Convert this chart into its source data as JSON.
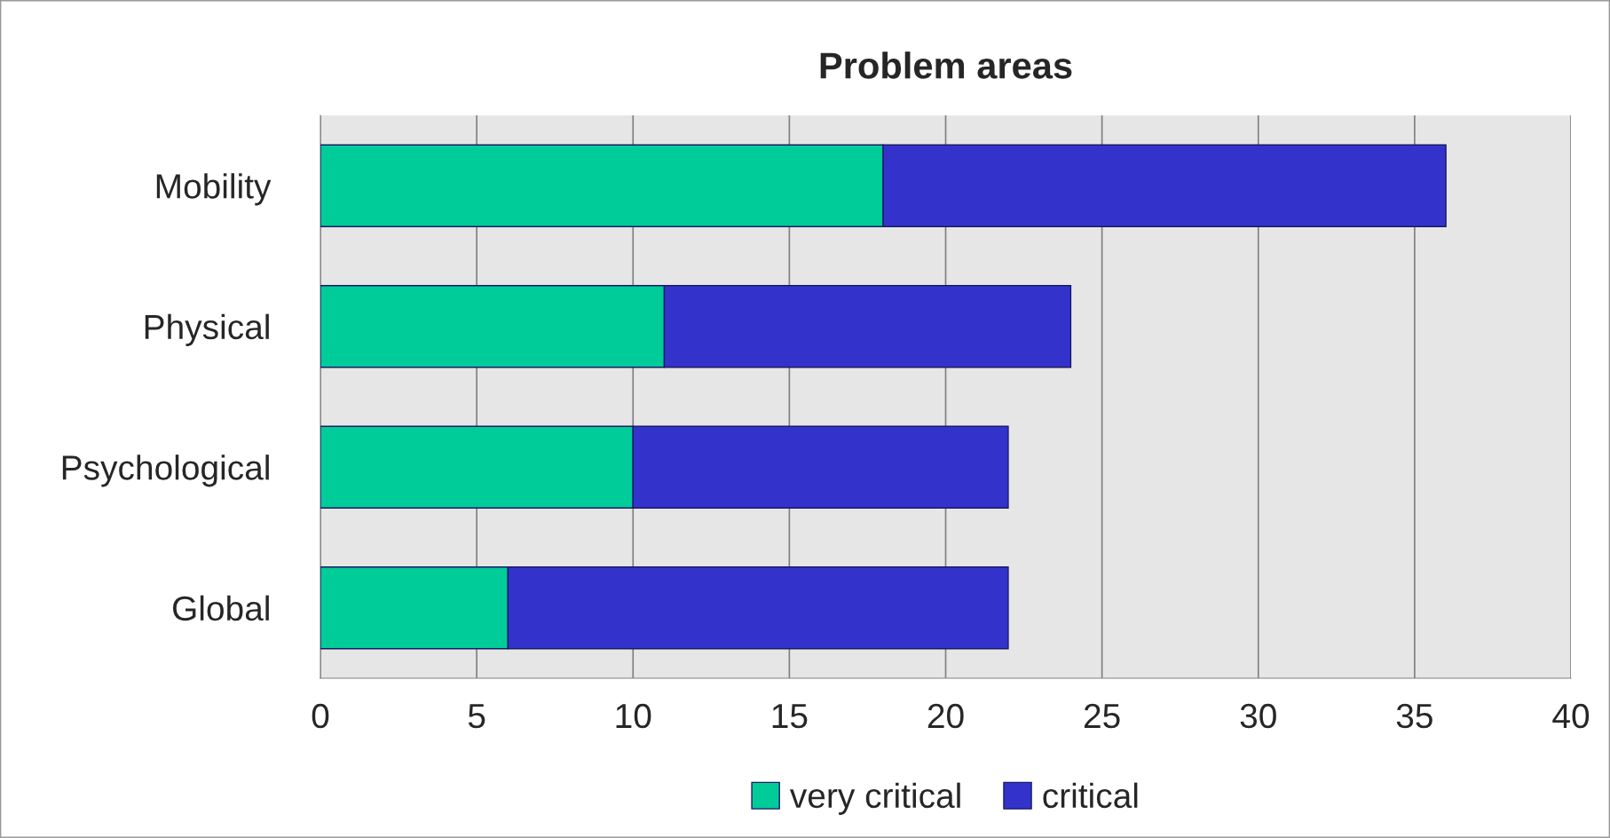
{
  "chart_data": {
    "type": "bar",
    "title": "Problem areas",
    "orientation": "horizontal",
    "stacked": true,
    "categories": [
      "Mobility",
      "Physical",
      "Psychological",
      "Global"
    ],
    "series": [
      {
        "name": "very critical",
        "color": "#00cc99",
        "values": [
          18,
          11,
          10,
          6
        ]
      },
      {
        "name": "critical",
        "color": "#3333cc",
        "values": [
          18,
          13,
          12,
          16
        ]
      }
    ],
    "xlim": [
      0,
      40
    ],
    "xticks": [
      0,
      5,
      10,
      15,
      20,
      25,
      30,
      35,
      40
    ],
    "grid": "x",
    "legend": "bottom"
  }
}
